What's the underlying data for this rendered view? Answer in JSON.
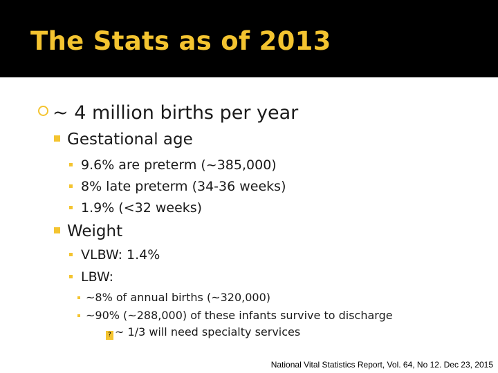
{
  "title": "The Stats as of 2013",
  "bullets": {
    "main": "~ 4 million births per year",
    "gestational": {
      "heading": "Gestational age",
      "items": [
        "9.6% are preterm (~385,000)",
        "8% late preterm (34-36 weeks)",
        "1.9% (<32 weeks)"
      ]
    },
    "weight": {
      "heading": "Weight",
      "vlbw": "VLBW: 1.4%",
      "lbw": "LBW:",
      "lbw_items": [
        "~8% of annual births (~320,000)",
        "~90% (~288,000) of these infants survive to discharge"
      ],
      "specialty": "~ 1/3 will need specialty services"
    }
  },
  "citation": "National Vital Statistics Report, Vol. 64, No 12. Dec 23, 2015",
  "colors": {
    "accent": "#f4c430",
    "title_bg": "#000000"
  }
}
